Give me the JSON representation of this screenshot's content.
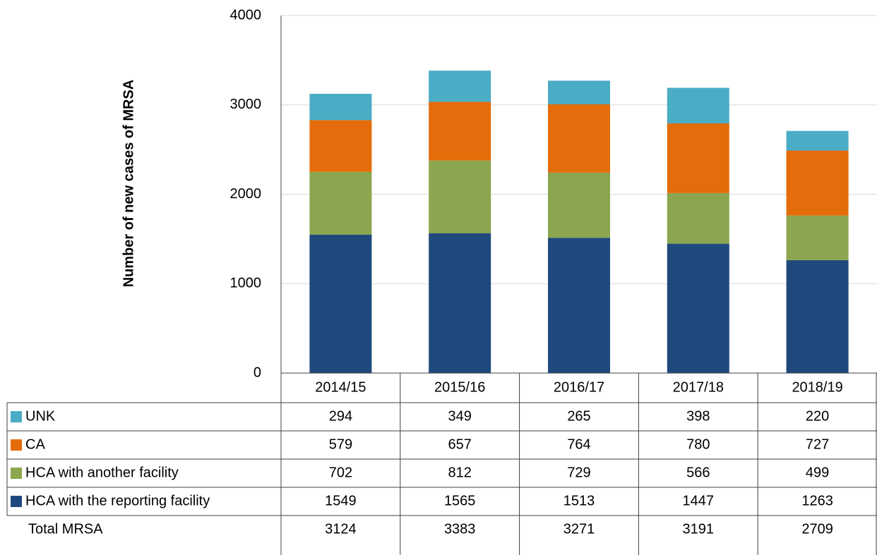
{
  "chart_data": {
    "type": "stacked_bar",
    "ylabel": "Number of new cases of MRSA",
    "categories": [
      "2014/15",
      "2015/16",
      "2016/17",
      "2017/18",
      "2018/19"
    ],
    "series": [
      {
        "name": "HCA with the reporting facility",
        "color": "#1f497d",
        "values": [
          1549,
          1565,
          1513,
          1447,
          1263
        ]
      },
      {
        "name": "HCA with another facility",
        "color": "#8aa64e",
        "values": [
          702,
          812,
          729,
          566,
          499
        ]
      },
      {
        "name": "CA",
        "color": "#e46c0a",
        "values": [
          579,
          657,
          764,
          780,
          727
        ]
      },
      {
        "name": "UNK",
        "color": "#4bacc6",
        "values": [
          294,
          349,
          265,
          398,
          220
        ]
      }
    ],
    "total": {
      "name": "Total MRSA",
      "values": [
        3124,
        3383,
        3271,
        3191,
        2709
      ]
    },
    "ylim": [
      0,
      4000
    ],
    "yticks": [
      0,
      1000,
      2000,
      3000,
      4000
    ],
    "grid": true
  }
}
